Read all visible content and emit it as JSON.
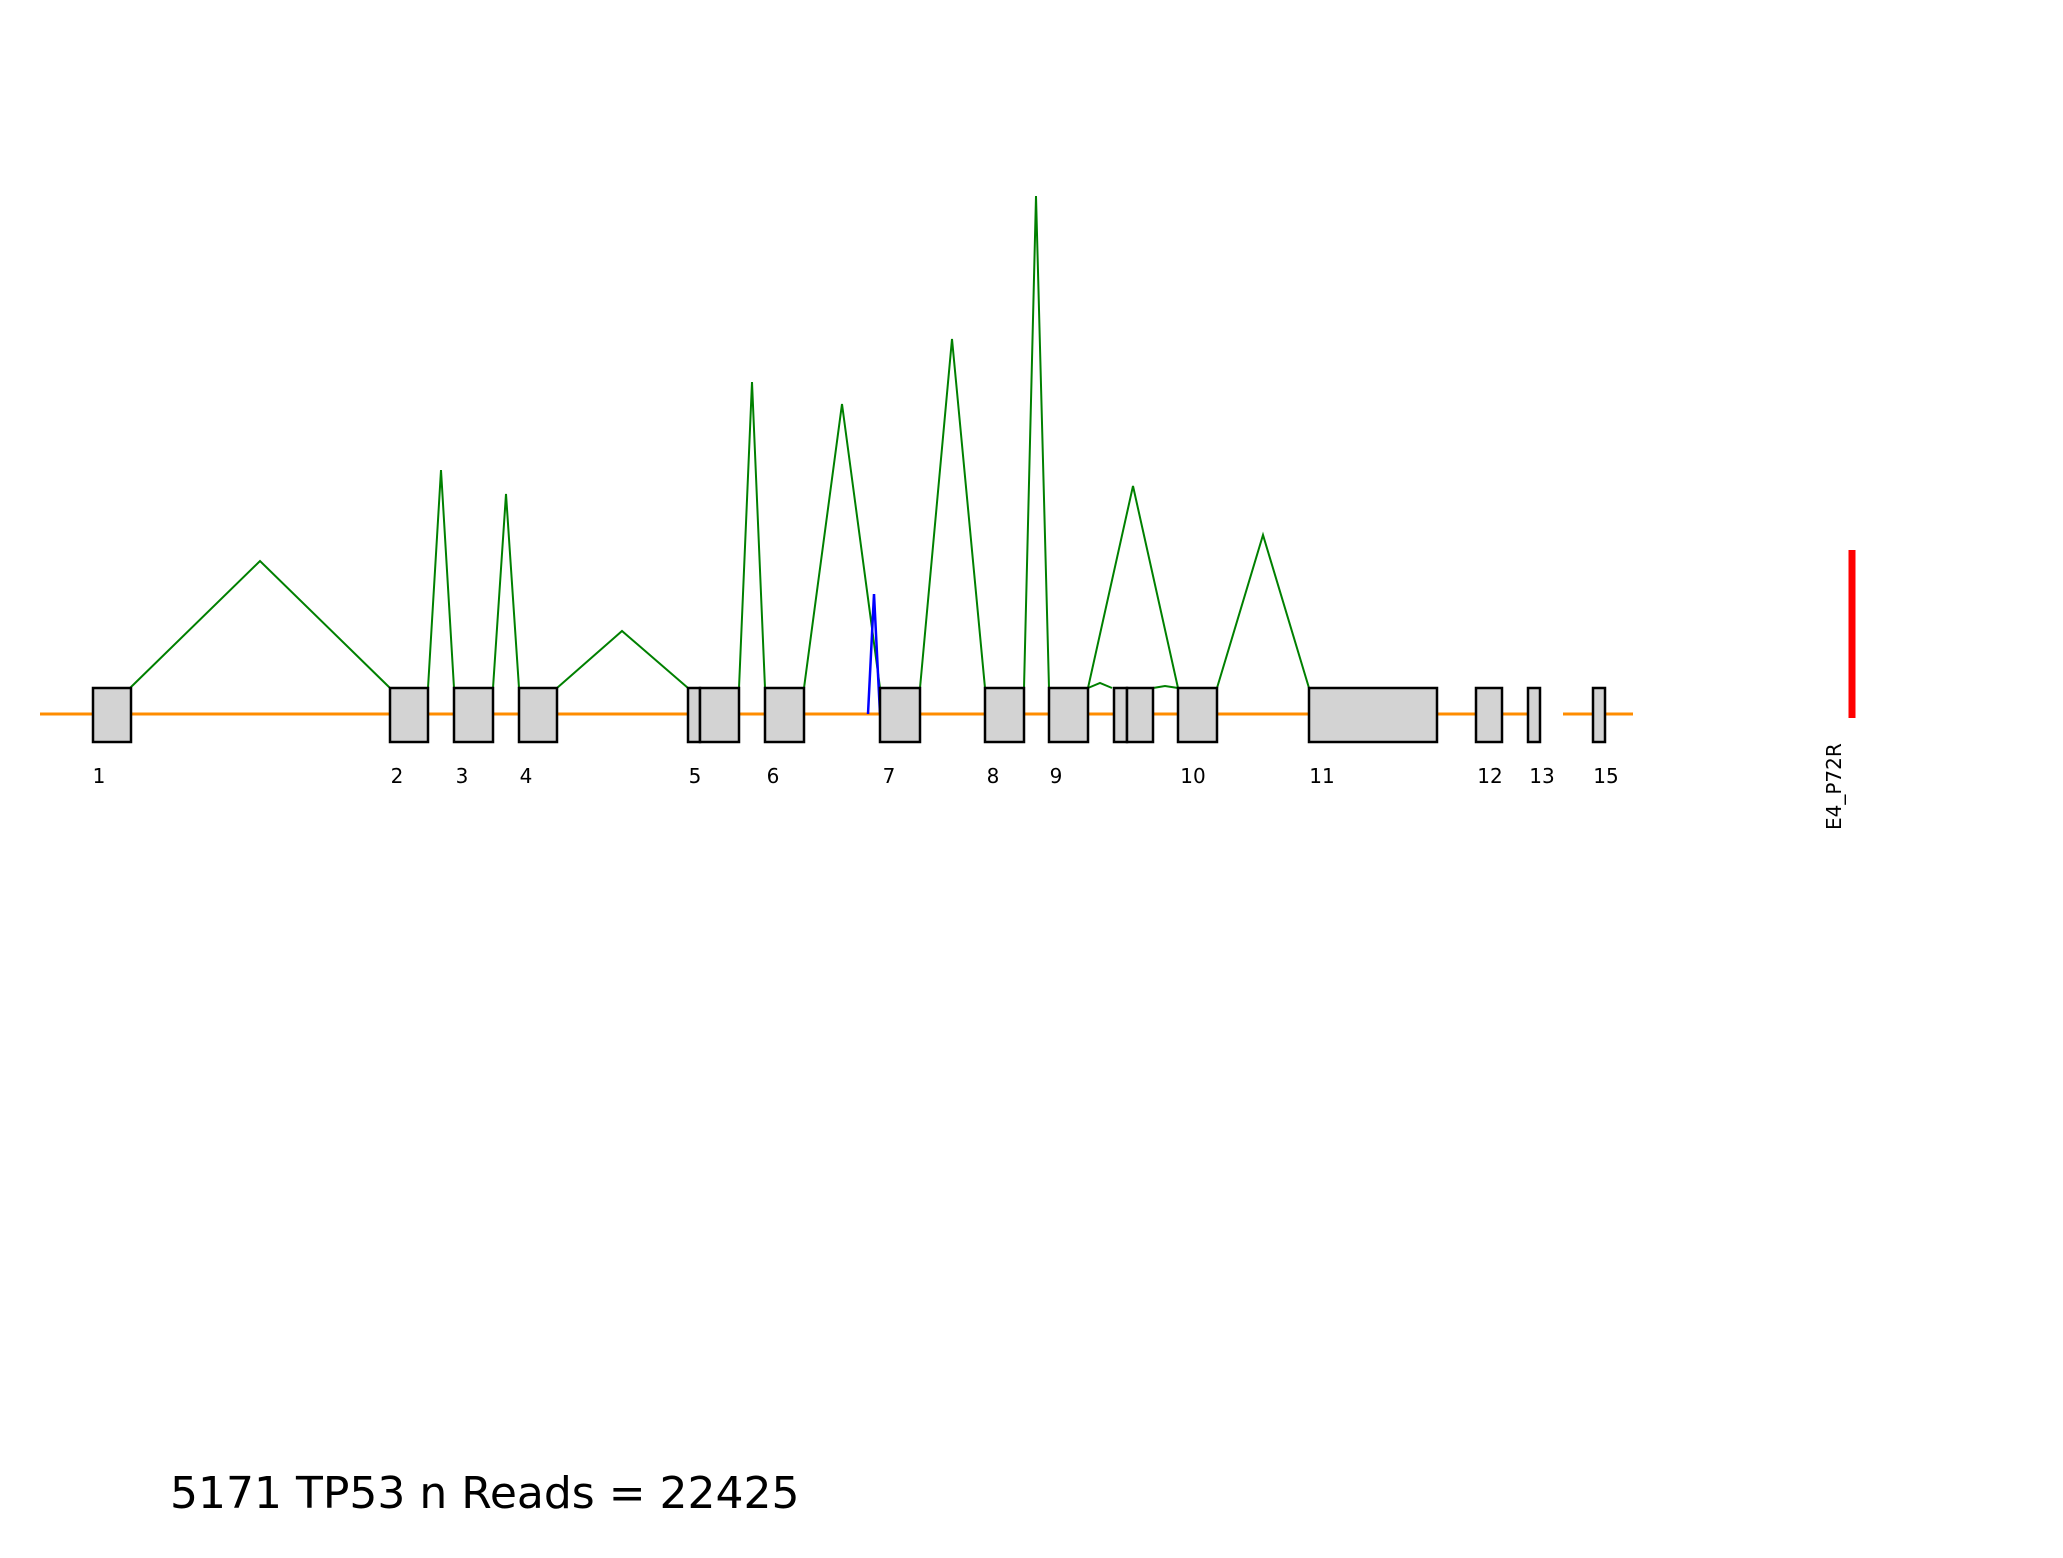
{
  "caption": "5171 TP53 n Reads = 22425",
  "colors": {
    "intron_line": "#ff8c00",
    "exon_fill": "#d3d3d3",
    "exon_stroke": "#000000",
    "junction": "#008000",
    "blue_event": "#0000ff",
    "mutation": "#ff0000"
  },
  "exon_labels": [
    "1",
    "2",
    "3",
    "4",
    "5",
    "6",
    "7",
    "8",
    "9",
    "10",
    "11",
    "12",
    "13",
    "15"
  ],
  "mutation": {
    "label": "E4_P72R"
  }
}
